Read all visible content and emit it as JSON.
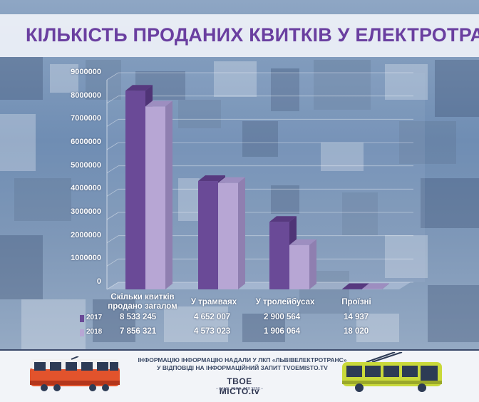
{
  "title": "КІЛЬКІСТЬ ПРОДАНИХ КВИТКІВ У ЕЛЕКТРОТРАНСПОРТІ",
  "chart_data": {
    "type": "bar",
    "categories": [
      "Скільки квитків продано загалом",
      "У трамваях",
      "У тролейбусах",
      "Проїзні"
    ],
    "series": [
      {
        "name": "2017",
        "values": [
          8533245,
          4652007,
          2900564,
          14937
        ],
        "labels": [
          "8 533 245",
          "4 652 007",
          "2 900 564",
          "14 937"
        ]
      },
      {
        "name": "2018",
        "values": [
          7856321,
          4573023,
          1906064,
          18020
        ],
        "labels": [
          "7 856 321",
          "4 573 023",
          "1 906 064",
          "18 020"
        ]
      }
    ],
    "yticks": [
      "9000000",
      "8000000",
      "7000000",
      "6000000",
      "5000000",
      "4000000",
      "3000000",
      "2000000",
      "1000000",
      "0"
    ],
    "ylim": [
      0,
      9000000
    ],
    "colors": {
      "2017": "#6a4a97",
      "2018": "#b7a6d4"
    },
    "legend": "bottom-left"
  },
  "footer": {
    "source": "ІНФОРМАЦІЮ ІНФОРМАЦІЮ НАДАЛИ У ЛКП «ЛЬВІВЕЛЕКТРОТРАНС» У ВІДПОВІДІ НА ІНФОРМАЦІЙНИЙ ЗАПИТ TVOEMISTO.TV",
    "logo": "TBOE MICTO.tv",
    "logo_tagline": "• НАШЕ. ТВОЄ. ДЛЯ ТЕБЕ •"
  }
}
